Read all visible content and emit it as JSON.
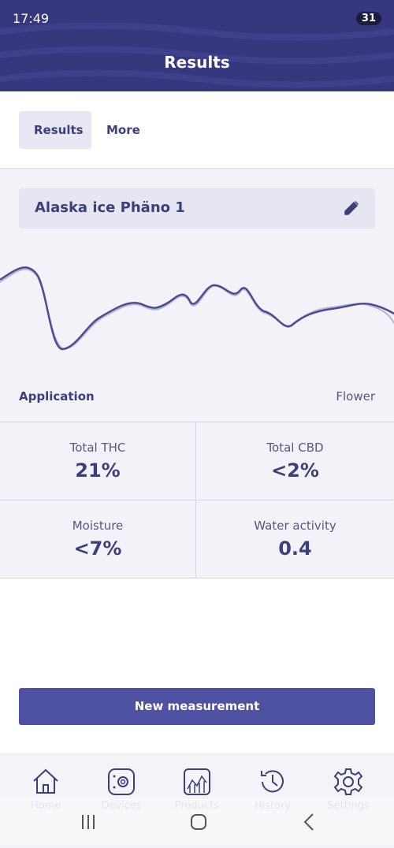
{
  "status_bar": {
    "time": "17:49",
    "battery": "31"
  },
  "header": {
    "title": "Results"
  },
  "tabs": [
    "Results",
    "More"
  ],
  "sample": {
    "name": "Alaska ice Phäno 1"
  },
  "application": {
    "label": "Application",
    "value": "Flower"
  },
  "metrics": [
    {
      "label": "Total THC",
      "value": "21%"
    },
    {
      "label": "Total CBD",
      "value": "<2%"
    },
    {
      "label": "Moisture",
      "value": "<7%"
    },
    {
      "label": "Water activity",
      "value": "0.4"
    }
  ],
  "button": "New measurement",
  "nav": [
    "Home",
    "Devices",
    "Products",
    "History",
    "Settings"
  ]
}
